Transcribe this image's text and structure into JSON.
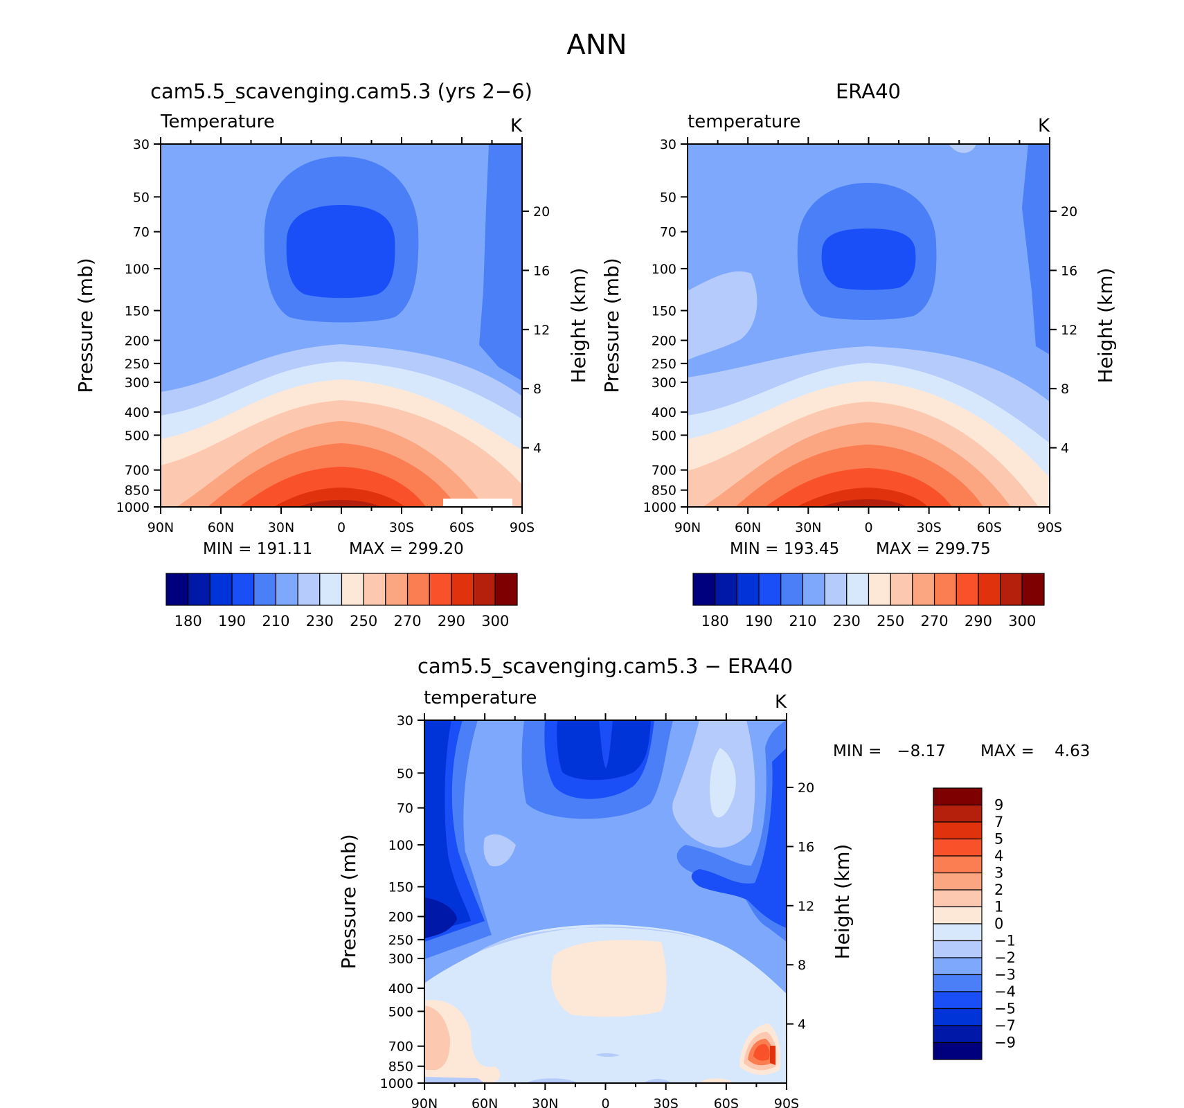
{
  "figure": {
    "title": "ANN"
  },
  "chart_data": [
    {
      "type": "heatmap",
      "title": "cam5.5_scavenging.cam5.3 (yrs 2−6)",
      "variable": "Temperature",
      "units": "K",
      "xlabel": "",
      "ylabel": "Pressure (mb)",
      "ylabel_right": "Height (km)",
      "x_ticks": [
        "90N",
        "60N",
        "30N",
        "0",
        "30S",
        "60S",
        "90S"
      ],
      "x_values": [
        90,
        60,
        30,
        0,
        -30,
        -60,
        -90
      ],
      "y_ticks": [
        "30",
        "50",
        "70",
        "100",
        "150",
        "200",
        "250",
        "300",
        "400",
        "500",
        "700",
        "850",
        "1000"
      ],
      "y_values": [
        30,
        50,
        70,
        100,
        150,
        200,
        250,
        300,
        400,
        500,
        700,
        850,
        1000
      ],
      "y_scale": "log",
      "height_ticks": [
        "20",
        "16",
        "12",
        "8",
        "4"
      ],
      "height_values": [
        20,
        16,
        12,
        8,
        4
      ],
      "min_label": "MIN = 191.11",
      "max_label": "MAX = 299.20",
      "min": 191.11,
      "max": 299.2,
      "colorbar": {
        "orientation": "horizontal",
        "labels": [
          "180",
          "190",
          "210",
          "230",
          "250",
          "270",
          "290",
          "300"
        ]
      }
    },
    {
      "type": "heatmap",
      "title": "ERA40",
      "variable": "temperature",
      "units": "K",
      "xlabel": "",
      "ylabel": "Pressure (mb)",
      "ylabel_right": "Height (km)",
      "x_ticks": [
        "90N",
        "60N",
        "30N",
        "0",
        "30S",
        "60S",
        "90S"
      ],
      "x_values": [
        90,
        60,
        30,
        0,
        -30,
        -60,
        -90
      ],
      "y_ticks": [
        "30",
        "50",
        "70",
        "100",
        "150",
        "200",
        "250",
        "300",
        "400",
        "500",
        "700",
        "850",
        "1000"
      ],
      "y_values": [
        30,
        50,
        70,
        100,
        150,
        200,
        250,
        300,
        400,
        500,
        700,
        850,
        1000
      ],
      "y_scale": "log",
      "height_ticks": [
        "20",
        "16",
        "12",
        "8",
        "4"
      ],
      "height_values": [
        20,
        16,
        12,
        8,
        4
      ],
      "min_label": "MIN = 193.45",
      "max_label": "MAX = 299.75",
      "min": 193.45,
      "max": 299.75,
      "colorbar": {
        "orientation": "horizontal",
        "labels": [
          "180",
          "190",
          "210",
          "230",
          "250",
          "270",
          "290",
          "300"
        ]
      }
    },
    {
      "type": "heatmap",
      "title": "cam5.5_scavenging.cam5.3 − ERA40",
      "variable": "temperature",
      "units": "K",
      "xlabel": "",
      "ylabel": "Pressure (mb)",
      "ylabel_right": "Height (km)",
      "x_ticks": [
        "90N",
        "60N",
        "30N",
        "0",
        "30S",
        "60S",
        "90S"
      ],
      "x_values": [
        90,
        60,
        30,
        0,
        -30,
        -60,
        -90
      ],
      "y_ticks": [
        "30",
        "50",
        "70",
        "100",
        "150",
        "200",
        "250",
        "300",
        "400",
        "500",
        "700",
        "850",
        "1000"
      ],
      "y_values": [
        30,
        50,
        70,
        100,
        150,
        200,
        250,
        300,
        400,
        500,
        700,
        850,
        1000
      ],
      "y_scale": "log",
      "height_ticks": [
        "20",
        "16",
        "12",
        "8",
        "4"
      ],
      "height_values": [
        20,
        16,
        12,
        8,
        4
      ],
      "min_label": "MIN =   −8.17",
      "max_label": "MAX =    4.63",
      "min": -8.17,
      "max": 4.63,
      "colorbar": {
        "orientation": "vertical",
        "labels_top_to_bottom": [
          "9",
          "7",
          "5",
          "4",
          "3",
          "2",
          "1",
          "0",
          "−1",
          "−2",
          "−3",
          "−4",
          "−5",
          "−7",
          "−9"
        ]
      }
    }
  ],
  "palettes": {
    "absolute": [
      "#00007f",
      "#0018a8",
      "#0034d8",
      "#1a4ff8",
      "#4a7ff8",
      "#7ea8fb",
      "#b4cbfb",
      "#d8e8fc",
      "#fde8d8",
      "#fcc9b0",
      "#fca581",
      "#fb7d52",
      "#f9522a",
      "#e1320e",
      "#b5200d",
      "#7f0000"
    ],
    "difference_top_to_bottom": [
      "#7f0000",
      "#b5200d",
      "#e1320e",
      "#f9522a",
      "#fb7d52",
      "#fca581",
      "#fcc9b0",
      "#fde8d8",
      "#d8e8fc",
      "#b4cbfb",
      "#7ea8fb",
      "#4a7ff8",
      "#1a4ff8",
      "#0034d8",
      "#0018a8",
      "#00007f"
    ]
  }
}
